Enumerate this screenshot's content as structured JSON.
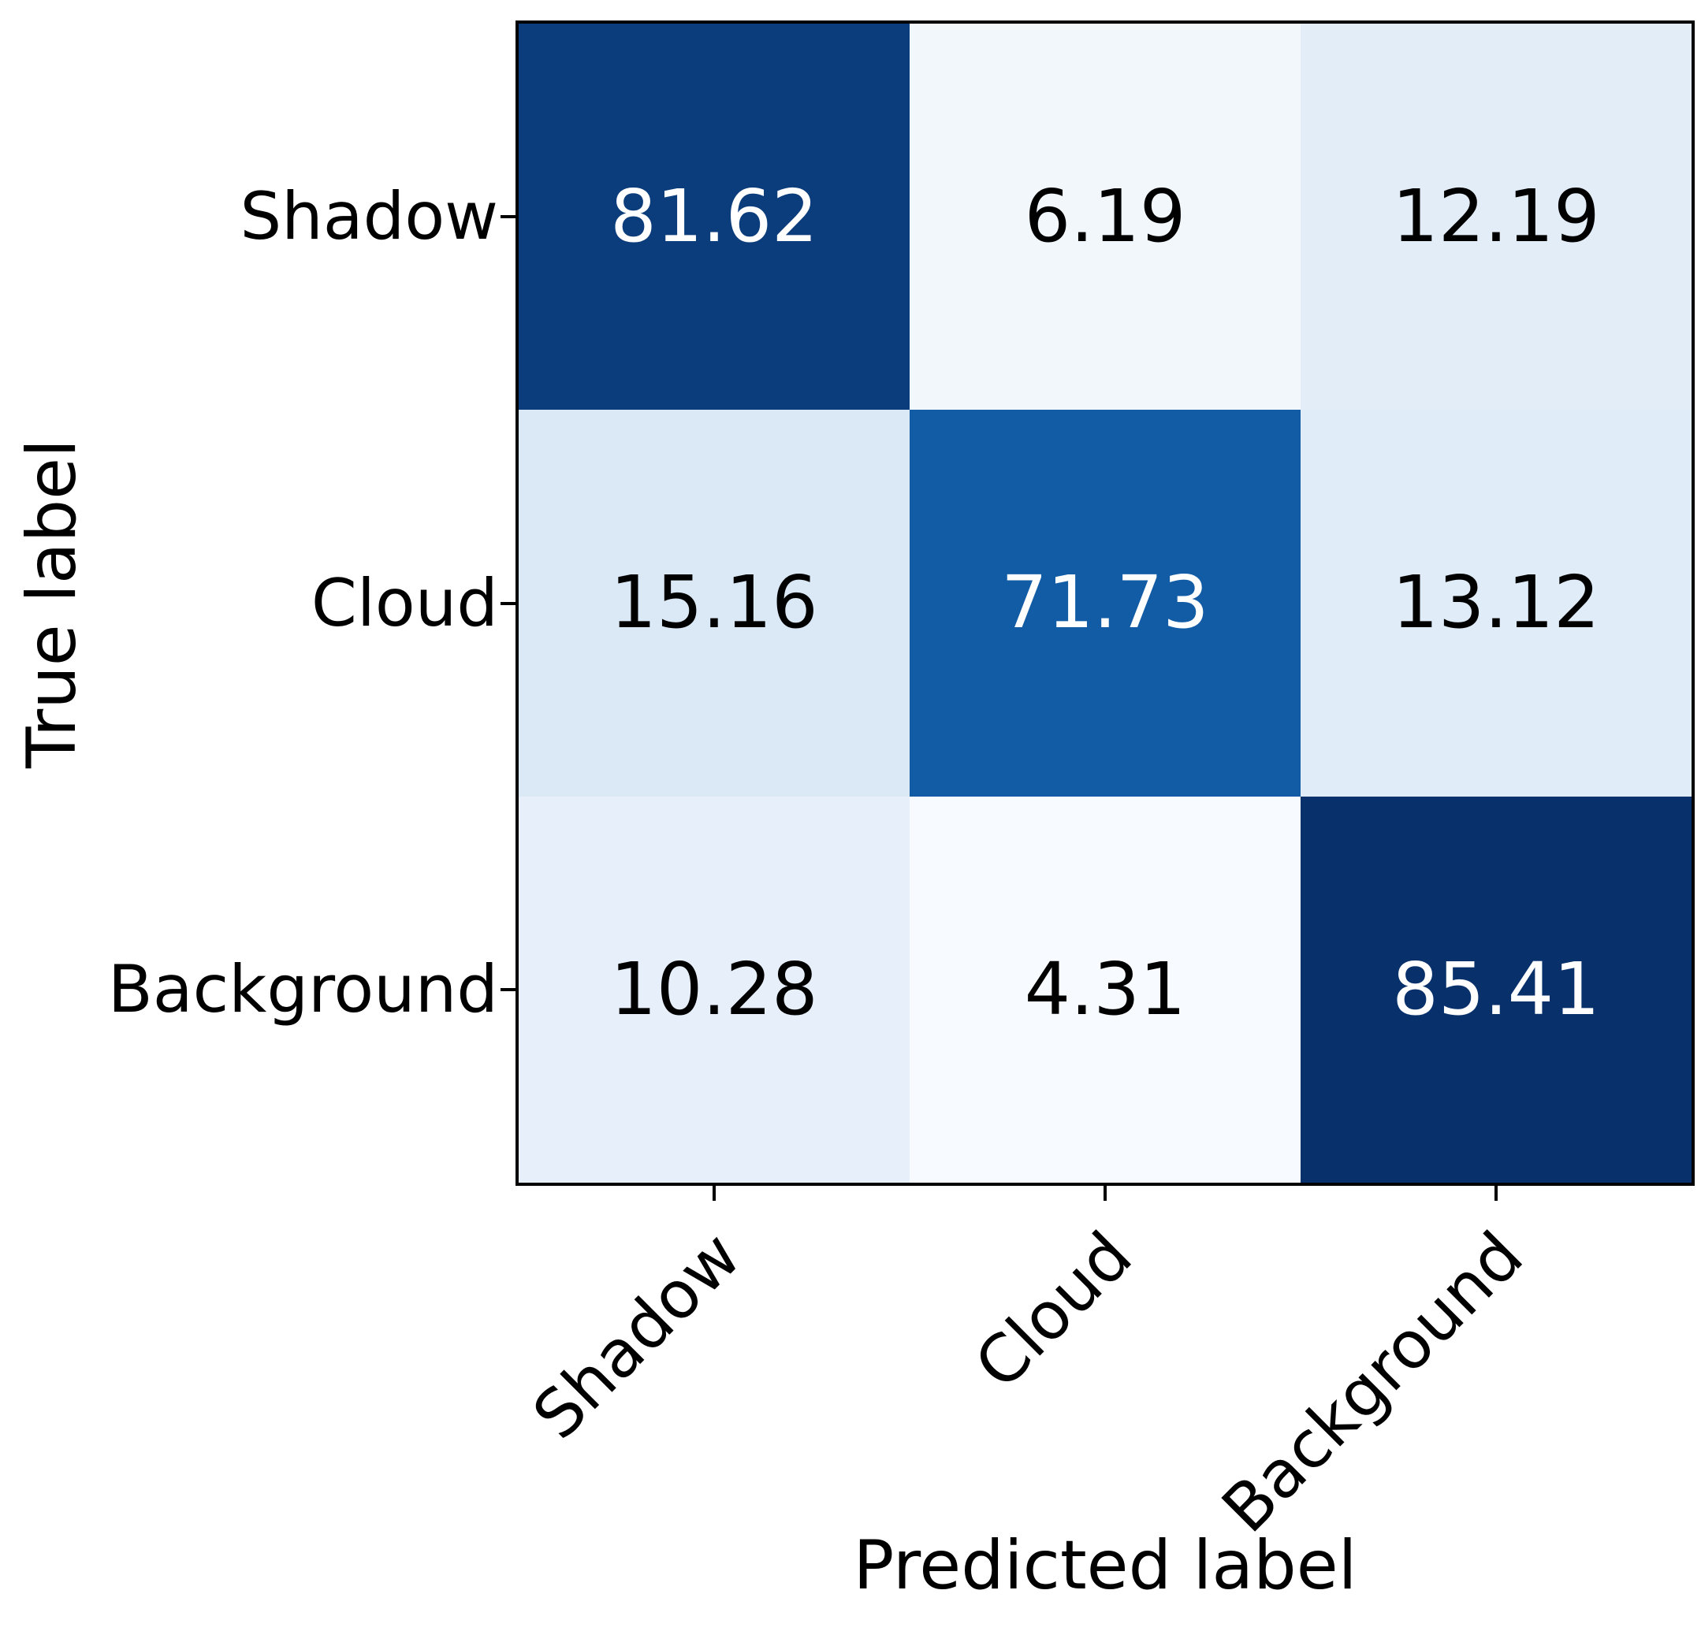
{
  "chart_data": {
    "type": "heatmap",
    "subtype": "confusion-matrix",
    "title": "",
    "xlabel": "Predicted label",
    "ylabel": "True label",
    "x_categories": [
      "Shadow",
      "Cloud",
      "Background"
    ],
    "y_categories": [
      "Shadow",
      "Cloud",
      "Background"
    ],
    "values": [
      [
        81.62,
        6.19,
        12.19
      ],
      [
        15.16,
        71.73,
        13.12
      ],
      [
        10.28,
        4.31,
        85.41
      ]
    ],
    "value_format": "2-decimals",
    "colormap": "Blues",
    "value_range": [
      4.31,
      85.41
    ],
    "grid": false,
    "legend": "none",
    "cell_colors": [
      [
        "#0b3c7b",
        "#f2f7fc",
        "#e2edf8"
      ],
      [
        "#dbe9f6",
        "#125ca6",
        "#e0ecf8"
      ],
      [
        "#e7f0fa",
        "#f7fbff",
        "#08306b"
      ]
    ],
    "text_colors": [
      [
        "#ffffff",
        "#000000",
        "#000000"
      ],
      [
        "#000000",
        "#ffffff",
        "#000000"
      ],
      [
        "#000000",
        "#000000",
        "#ffffff"
      ]
    ],
    "axis_color": "#000000",
    "background_color": "#ffffff"
  }
}
